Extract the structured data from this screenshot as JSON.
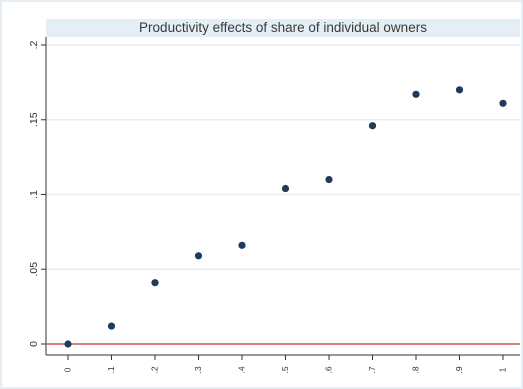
{
  "chart_data": {
    "type": "scatter",
    "title": "Productivity effects of share of individual owners",
    "xlabel": "",
    "ylabel": "",
    "x_tick_labels": [
      "0",
      ".1",
      ".2",
      ".3",
      ".4",
      ".5",
      ".6",
      ".7",
      ".8",
      ".9",
      "1"
    ],
    "y_tick_labels": [
      "0",
      ".05",
      ".1",
      ".15",
      ".2"
    ],
    "x": [
      0,
      0.1,
      0.2,
      0.3,
      0.4,
      0.5,
      0.6,
      0.7,
      0.8,
      0.9,
      1.0
    ],
    "y": [
      0.0,
      0.012,
      0.041,
      0.059,
      0.066,
      0.104,
      0.11,
      0.146,
      0.167,
      0.17,
      0.161
    ],
    "xlim": [
      0,
      1
    ],
    "ylim": [
      0,
      0.2
    ],
    "grid": "horizontal",
    "reference_line_y": 0,
    "colors": {
      "background": "#ffffff",
      "plot_background": "#ffffff",
      "frame": "#e4eef5",
      "grid": "#e4eef5",
      "marker": "#1f3b5c",
      "reference_line": "#c0392b",
      "axis": "#333333"
    }
  }
}
